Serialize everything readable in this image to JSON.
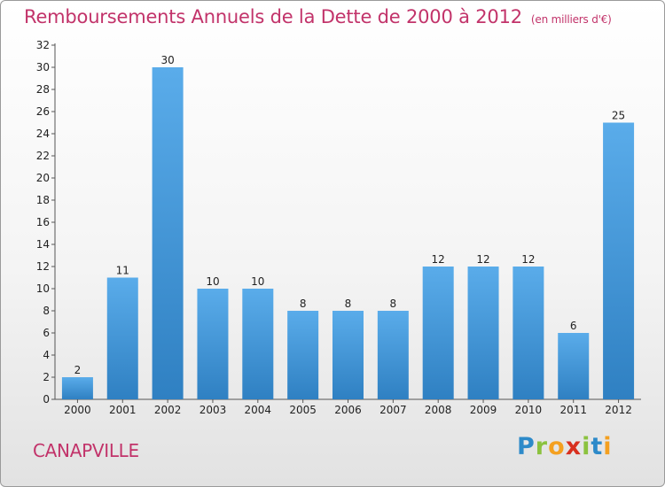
{
  "title": "Remboursements Annuels de la Dette de 2000 à 2012",
  "unit": "(en milliers d'€)",
  "commune": "CANAPVILLE",
  "logo": {
    "letters": [
      "P",
      "r",
      "o",
      "x",
      "i",
      "t",
      "i"
    ],
    "colors": [
      "#2d8ac9",
      "#8bc23f",
      "#f4a020",
      "#d8301f",
      "#8bc23f",
      "#2d8ac9",
      "#f4a020"
    ]
  },
  "colors": {
    "title": "#c2336a",
    "bar_light": "#5aacea",
    "bar_dark": "#2f80c2"
  },
  "chart_data": {
    "type": "bar",
    "categories": [
      "2000",
      "2001",
      "2002",
      "2003",
      "2004",
      "2005",
      "2006",
      "2007",
      "2008",
      "2009",
      "2010",
      "2011",
      "2012"
    ],
    "values": [
      2,
      11,
      30,
      10,
      10,
      8,
      8,
      8,
      12,
      12,
      12,
      6,
      25
    ],
    "ylim": [
      0,
      32
    ],
    "yticks": [
      0,
      2,
      4,
      6,
      8,
      10,
      12,
      14,
      16,
      18,
      20,
      22,
      24,
      26,
      28,
      30,
      32
    ],
    "grid": false,
    "title": "Remboursements Annuels de la Dette de 2000 à 2012",
    "xlabel": "",
    "ylabel": ""
  }
}
